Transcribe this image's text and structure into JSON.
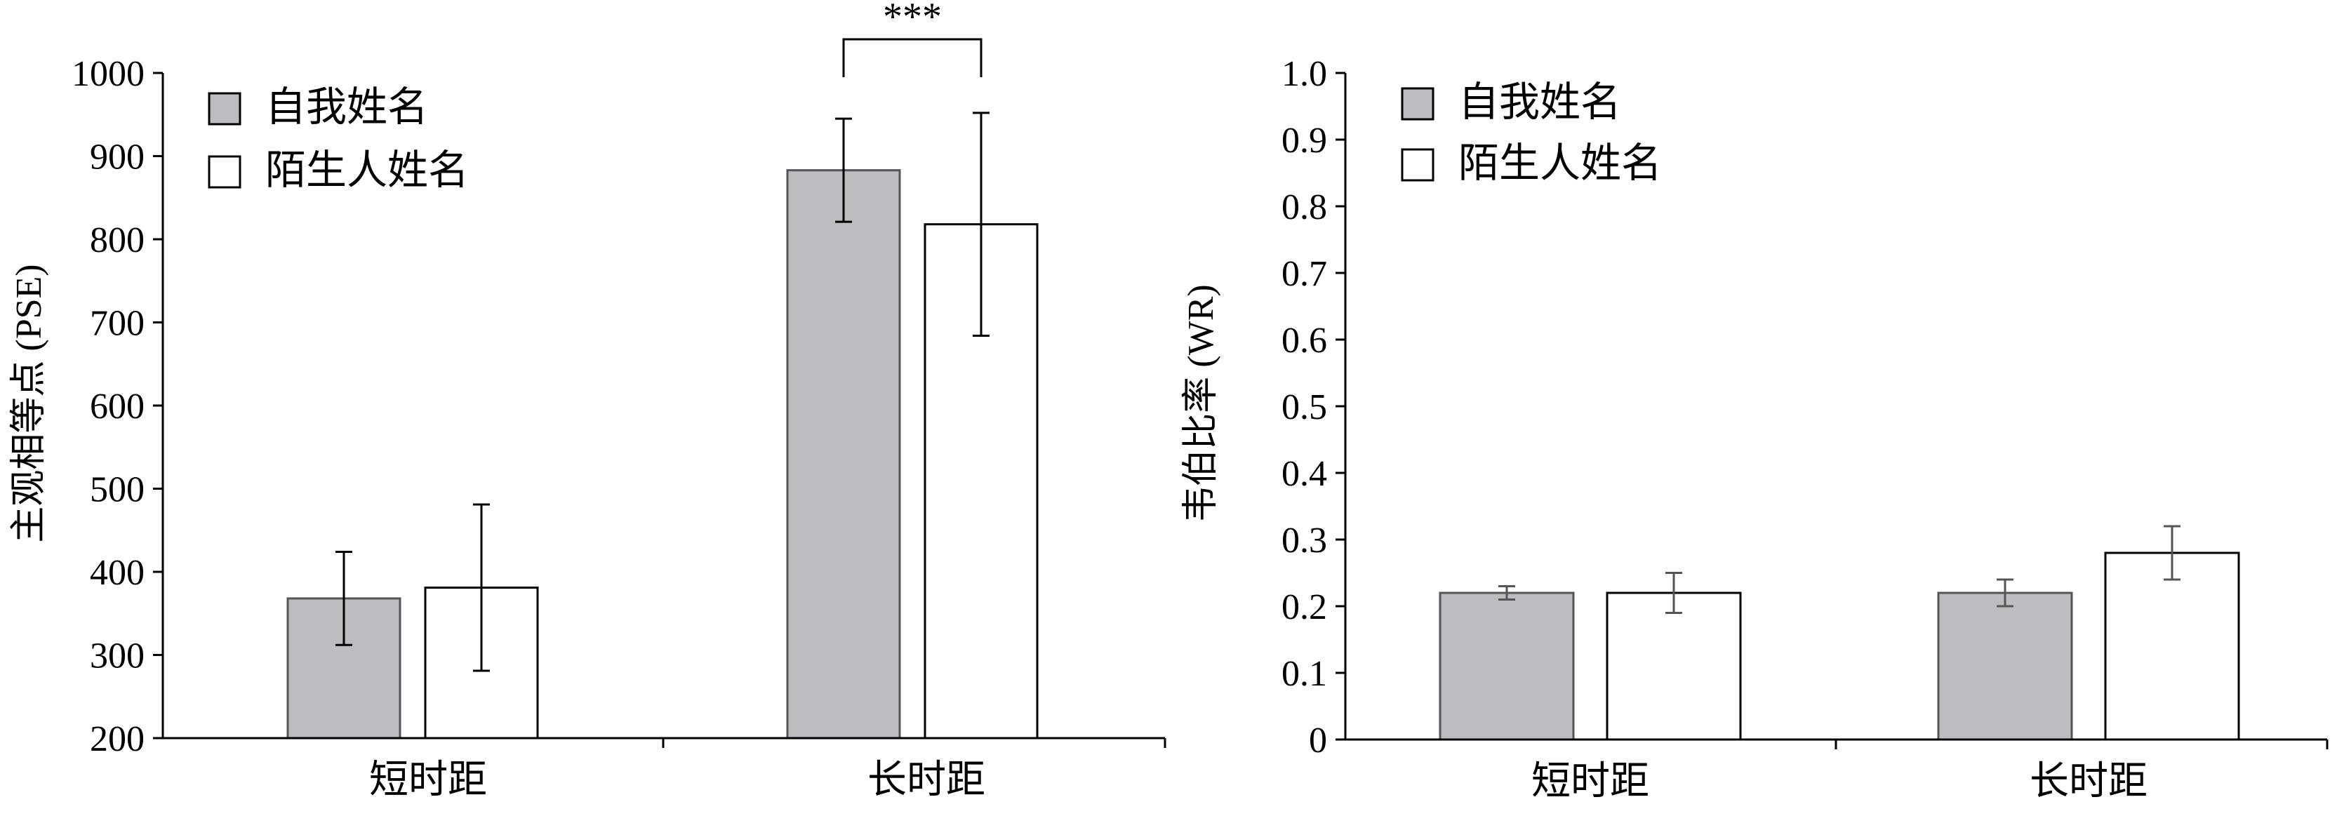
{
  "colors": {
    "self_name_fill": "#bdbcc1",
    "stranger_name_fill": "#ffffff",
    "stroke": "#000000",
    "errorbar_right": "#555555"
  },
  "chart_data": [
    {
      "type": "bar",
      "categories": [
        "短时距",
        "长时距"
      ],
      "ylabel": "主观相等点 (PSE)",
      "ylim": [
        200,
        1000
      ],
      "yticks": [
        "200",
        "300",
        "400",
        "500",
        "600",
        "700",
        "800",
        "900",
        "1000"
      ],
      "series": [
        {
          "name": "自我姓名",
          "values": [
            368,
            883
          ],
          "errors": [
            56,
            62
          ]
        },
        {
          "name": "陌生人姓名",
          "values": [
            381,
            818
          ],
          "errors": [
            100,
            134
          ]
        }
      ],
      "legend": "top-left",
      "annotations": [
        {
          "text": "***",
          "between": "长时距"
        }
      ],
      "grid": false
    },
    {
      "type": "bar",
      "categories": [
        "短时距",
        "长时距"
      ],
      "ylabel": "韦伯比率 (WR)",
      "ylim": [
        0,
        1.0
      ],
      "yticks": [
        "0",
        "0.1",
        "0.2",
        "0.3",
        "0.4",
        "0.5",
        "0.6",
        "0.7",
        "0.8",
        "0.9",
        "1.0"
      ],
      "series": [
        {
          "name": "自我姓名",
          "values": [
            0.22,
            0.22
          ],
          "errors": [
            0.01,
            0.02
          ]
        },
        {
          "name": "陌生人姓名",
          "values": [
            0.22,
            0.28
          ],
          "errors": [
            0.03,
            0.04
          ]
        }
      ],
      "legend": "top-left",
      "grid": false
    }
  ]
}
